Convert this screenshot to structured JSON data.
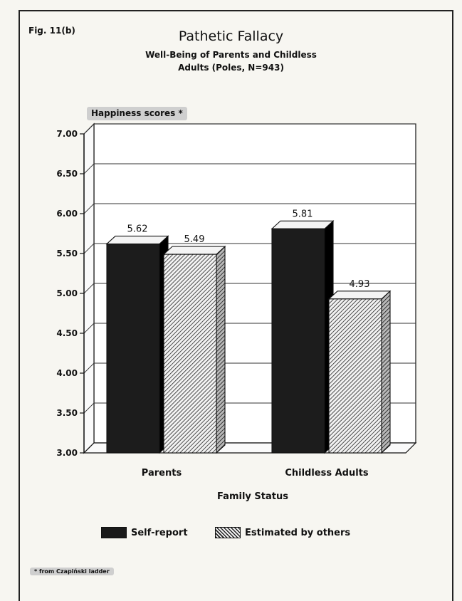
{
  "figure_label": "Fig. 11(b)",
  "footnote": "* from Czapiński ladder",
  "chart_data": {
    "type": "bar",
    "title": "Pathetic Fallacy",
    "subtitle_lines": [
      "Well-Being of Parents and Childless",
      "Adults (Poles, N=943)"
    ],
    "ylabel": "Happiness scores *",
    "xlabel": "Family Status",
    "categories": [
      "Parents",
      "Childless Adults"
    ],
    "series": [
      {
        "name": "Self-report",
        "values": [
          5.62,
          5.81
        ],
        "value_labels": [
          "5.62",
          "5.81"
        ],
        "pattern": "solid",
        "color": "#1a1a1a"
      },
      {
        "name": "Estimated by others",
        "values": [
          5.49,
          4.93
        ],
        "value_labels": [
          "5.49",
          "4.93"
        ],
        "pattern": "hatched",
        "color": "#222222"
      }
    ],
    "ylim": [
      3.0,
      7.0
    ],
    "yticks": [
      "3.00",
      "3.50",
      "4.00",
      "4.50",
      "5.00",
      "5.50",
      "6.00",
      "6.50",
      "7.00"
    ],
    "grid": true,
    "three_d": true,
    "legend_position": "bottom"
  }
}
